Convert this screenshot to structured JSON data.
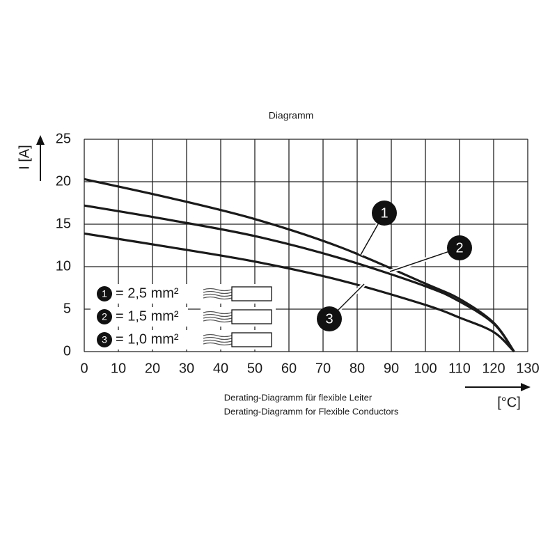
{
  "chart_data": {
    "type": "line",
    "title": "Diagramm",
    "y_label": "I [A]",
    "x_label": "[°C]",
    "caption": [
      "Derating-Diagramm für flexible Leiter",
      "Derating-Diagramm for Flexible Conductors"
    ],
    "x": [
      0,
      25,
      50,
      75,
      100,
      110,
      120,
      126
    ],
    "series": [
      {
        "label": "1",
        "name": "= 2,5 mm²",
        "color": "#1a1a1a",
        "values": [
          20.3,
          18.1,
          15.6,
          12.3,
          8.0,
          6.2,
          3.4,
          0
        ]
      },
      {
        "label": "2",
        "name": "= 1,5 mm²",
        "color": "#1a1a1a",
        "values": [
          17.2,
          15.5,
          13.6,
          11.0,
          7.7,
          5.9,
          3.3,
          0
        ]
      },
      {
        "label": "3",
        "name": "= 1,0 mm²",
        "color": "#1a1a1a",
        "values": [
          13.9,
          12.3,
          10.6,
          8.4,
          5.5,
          4.0,
          2.3,
          0
        ]
      }
    ],
    "xlim": [
      0,
      130
    ],
    "xticks": [
      0,
      10,
      20,
      30,
      40,
      50,
      60,
      70,
      80,
      90,
      100,
      110,
      120,
      130
    ],
    "ylim": [
      0,
      25
    ],
    "yticks": [
      0,
      5,
      10,
      15,
      20,
      25
    ],
    "grid": true
  }
}
